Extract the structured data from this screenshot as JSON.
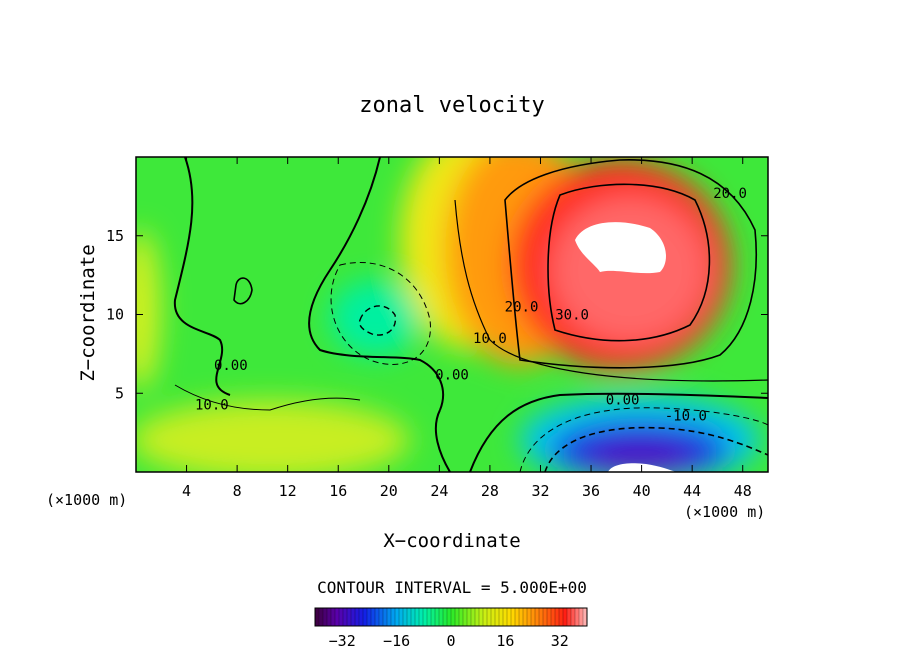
{
  "chart_data": {
    "type": "heatmap",
    "title": "zonal velocity",
    "xlabel": "X−coordinate",
    "ylabel": "Z−coordinate",
    "x_units": "(×1000 m)",
    "y_units": "(×1000 m)",
    "xlim": [
      0,
      50
    ],
    "ylim": [
      0,
      20
    ],
    "x_ticks": [
      4,
      8,
      12,
      16,
      20,
      24,
      28,
      32,
      36,
      40,
      44,
      48
    ],
    "y_ticks": [
      5,
      10,
      15
    ],
    "contour_interval_text": "CONTOUR INTERVAL = 5.000E+00",
    "contour_labels": [
      {
        "text": "20.0",
        "x": 47.0,
        "y": 17.7
      },
      {
        "text": "30.0",
        "x": 34.5,
        "y": 10.0
      },
      {
        "text": "20.0",
        "x": 30.5,
        "y": 10.5
      },
      {
        "text": "10.0",
        "x": 28.0,
        "y": 8.5
      },
      {
        "text": "0.00",
        "x": 7.5,
        "y": 6.8
      },
      {
        "text": "0.00",
        "x": 25.0,
        "y": 6.2
      },
      {
        "text": "10.0",
        "x": 6.0,
        "y": 4.3
      },
      {
        "text": "0.00",
        "x": 38.5,
        "y": 4.6
      },
      {
        "text": "-10.0",
        "x": 43.5,
        "y": 3.6
      }
    ],
    "colorbar": {
      "range": [
        -40,
        40
      ],
      "ticks": [
        -32,
        -16,
        0,
        16,
        32
      ],
      "tick_labels": [
        "−32",
        "−16",
        "0",
        "16",
        "32"
      ]
    },
    "grid": false,
    "legend": "none"
  }
}
